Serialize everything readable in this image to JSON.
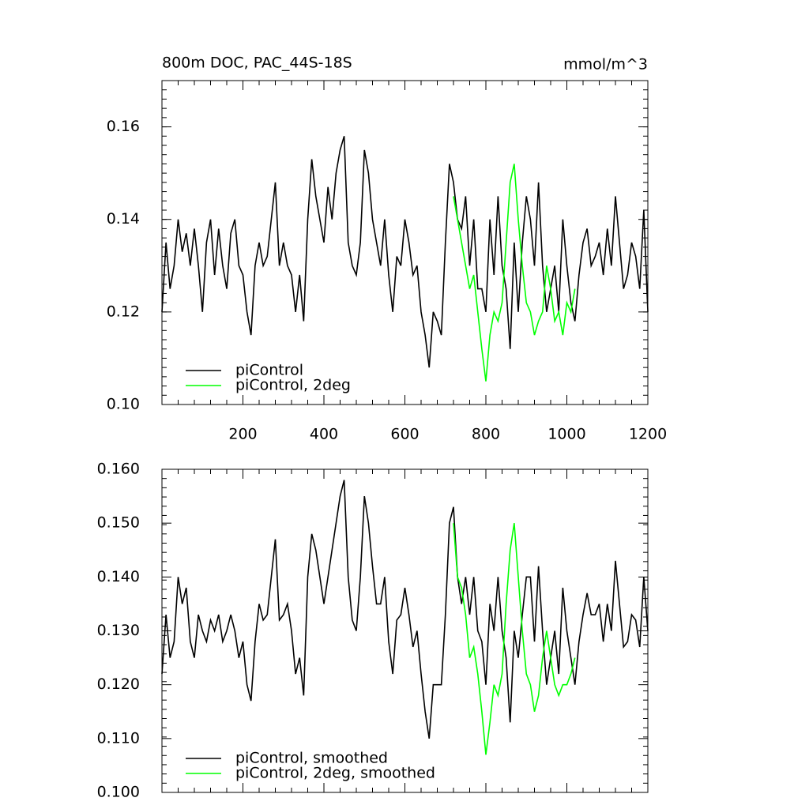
{
  "chart_data": [
    {
      "type": "line",
      "title": "800m DOC, PAC_44S-18S",
      "units": "mmol/m^3",
      "xlim": [
        0,
        1200
      ],
      "xticks": [
        200,
        400,
        600,
        800,
        1000,
        1200
      ],
      "ylim": [
        0.1,
        0.17
      ],
      "yticks": [
        {
          "value": 0.1,
          "label": "0.10"
        },
        {
          "value": 0.12,
          "label": "0.12"
        },
        {
          "value": 0.14,
          "label": "0.14"
        },
        {
          "value": 0.16,
          "label": "0.16"
        }
      ],
      "legend": "lower left",
      "series": [
        {
          "name": "piControl",
          "color": "#000000",
          "x": [
            0,
            10,
            20,
            30,
            40,
            50,
            60,
            70,
            80,
            90,
            100,
            110,
            120,
            130,
            140,
            150,
            160,
            170,
            180,
            190,
            200,
            210,
            220,
            230,
            240,
            250,
            260,
            270,
            280,
            290,
            300,
            310,
            320,
            330,
            340,
            350,
            360,
            370,
            380,
            390,
            400,
            410,
            420,
            430,
            440,
            450,
            460,
            470,
            480,
            490,
            500,
            510,
            520,
            530,
            540,
            550,
            560,
            570,
            580,
            590,
            600,
            610,
            620,
            630,
            640,
            650,
            660,
            670,
            680,
            690,
            700,
            710,
            720,
            730,
            740,
            750,
            760,
            770,
            780,
            790,
            800,
            810,
            820,
            830,
            840,
            850,
            860,
            870,
            880,
            890,
            900,
            910,
            920,
            930,
            940,
            950,
            960,
            970,
            980,
            990,
            1000,
            1010,
            1020,
            1030,
            1040,
            1050,
            1060,
            1070,
            1080,
            1090,
            1100,
            1110,
            1120,
            1130,
            1140,
            1150,
            1160,
            1170,
            1180,
            1190,
            1200
          ],
          "values": [
            0.12,
            0.135,
            0.125,
            0.13,
            0.14,
            0.133,
            0.137,
            0.13,
            0.138,
            0.13,
            0.12,
            0.135,
            0.14,
            0.128,
            0.138,
            0.13,
            0.125,
            0.137,
            0.14,
            0.13,
            0.128,
            0.12,
            0.115,
            0.13,
            0.135,
            0.13,
            0.132,
            0.14,
            0.148,
            0.13,
            0.135,
            0.13,
            0.128,
            0.12,
            0.128,
            0.118,
            0.14,
            0.153,
            0.145,
            0.14,
            0.135,
            0.147,
            0.14,
            0.15,
            0.155,
            0.158,
            0.135,
            0.13,
            0.128,
            0.135,
            0.155,
            0.15,
            0.14,
            0.135,
            0.13,
            0.14,
            0.128,
            0.12,
            0.132,
            0.13,
            0.14,
            0.135,
            0.128,
            0.13,
            0.12,
            0.115,
            0.108,
            0.12,
            0.118,
            0.115,
            0.135,
            0.152,
            0.148,
            0.14,
            0.138,
            0.145,
            0.13,
            0.14,
            0.125,
            0.125,
            0.12,
            0.14,
            0.128,
            0.145,
            0.13,
            0.125,
            0.112,
            0.135,
            0.12,
            0.135,
            0.145,
            0.14,
            0.13,
            0.148,
            0.13,
            0.12,
            0.125,
            0.13,
            0.12,
            0.14,
            0.13,
            0.122,
            0.118,
            0.128,
            0.135,
            0.138,
            0.13,
            0.132,
            0.135,
            0.128,
            0.138,
            0.13,
            0.145,
            0.135,
            0.125,
            0.128,
            0.135,
            0.132,
            0.125,
            0.142,
            0.12
          ]
        },
        {
          "name": "piControl, 2deg",
          "color": "#00ff00",
          "x": [
            720,
            730,
            740,
            750,
            760,
            770,
            780,
            790,
            800,
            810,
            820,
            830,
            840,
            850,
            860,
            870,
            880,
            890,
            900,
            910,
            920,
            930,
            940,
            950,
            960,
            970,
            980,
            990,
            1000,
            1010,
            1020
          ],
          "values": [
            0.145,
            0.14,
            0.135,
            0.13,
            0.125,
            0.128,
            0.12,
            0.112,
            0.105,
            0.115,
            0.12,
            0.118,
            0.122,
            0.135,
            0.148,
            0.152,
            0.14,
            0.13,
            0.122,
            0.12,
            0.115,
            0.118,
            0.12,
            0.13,
            0.125,
            0.118,
            0.12,
            0.115,
            0.122,
            0.12,
            0.125
          ]
        }
      ]
    },
    {
      "type": "line",
      "xlim": [
        0,
        1200
      ],
      "ylim": [
        0.1,
        0.16
      ],
      "yticks": [
        {
          "value": 0.1,
          "label": "0.100"
        },
        {
          "value": 0.11,
          "label": "0.110"
        },
        {
          "value": 0.12,
          "label": "0.120"
        },
        {
          "value": 0.13,
          "label": "0.130"
        },
        {
          "value": 0.14,
          "label": "0.140"
        },
        {
          "value": 0.15,
          "label": "0.150"
        },
        {
          "value": 0.16,
          "label": "0.160"
        }
      ],
      "legend": "lower left",
      "series": [
        {
          "name": "piControl, smoothed",
          "color": "#000000",
          "x": [
            0,
            10,
            20,
            30,
            40,
            50,
            60,
            70,
            80,
            90,
            100,
            110,
            120,
            130,
            140,
            150,
            160,
            170,
            180,
            190,
            200,
            210,
            220,
            230,
            240,
            250,
            260,
            270,
            280,
            290,
            300,
            310,
            320,
            330,
            340,
            350,
            360,
            370,
            380,
            390,
            400,
            410,
            420,
            430,
            440,
            450,
            460,
            470,
            480,
            490,
            500,
            510,
            520,
            530,
            540,
            550,
            560,
            570,
            580,
            590,
            600,
            610,
            620,
            630,
            640,
            650,
            660,
            670,
            680,
            690,
            700,
            710,
            720,
            730,
            740,
            750,
            760,
            770,
            780,
            790,
            800,
            810,
            820,
            830,
            840,
            850,
            860,
            870,
            880,
            890,
            900,
            910,
            920,
            930,
            940,
            950,
            960,
            970,
            980,
            990,
            1000,
            1010,
            1020,
            1030,
            1040,
            1050,
            1060,
            1070,
            1080,
            1090,
            1100,
            1110,
            1120,
            1130,
            1140,
            1150,
            1160,
            1170,
            1180,
            1190,
            1200
          ],
          "values": [
            0.122,
            0.133,
            0.125,
            0.128,
            0.14,
            0.135,
            0.138,
            0.128,
            0.125,
            0.133,
            0.13,
            0.128,
            0.132,
            0.13,
            0.133,
            0.128,
            0.13,
            0.133,
            0.13,
            0.125,
            0.128,
            0.12,
            0.117,
            0.128,
            0.135,
            0.132,
            0.133,
            0.14,
            0.147,
            0.132,
            0.133,
            0.135,
            0.13,
            0.122,
            0.125,
            0.118,
            0.14,
            0.148,
            0.145,
            0.14,
            0.135,
            0.14,
            0.145,
            0.15,
            0.155,
            0.158,
            0.14,
            0.132,
            0.13,
            0.14,
            0.155,
            0.15,
            0.142,
            0.135,
            0.135,
            0.14,
            0.128,
            0.122,
            0.132,
            0.133,
            0.138,
            0.133,
            0.127,
            0.13,
            0.122,
            0.115,
            0.11,
            0.12,
            0.12,
            0.12,
            0.133,
            0.15,
            0.153,
            0.14,
            0.135,
            0.14,
            0.133,
            0.14,
            0.13,
            0.128,
            0.12,
            0.135,
            0.13,
            0.14,
            0.13,
            0.125,
            0.113,
            0.13,
            0.125,
            0.133,
            0.14,
            0.14,
            0.128,
            0.142,
            0.13,
            0.12,
            0.125,
            0.13,
            0.122,
            0.138,
            0.13,
            0.125,
            0.12,
            0.128,
            0.133,
            0.137,
            0.133,
            0.133,
            0.135,
            0.128,
            0.135,
            0.13,
            0.143,
            0.135,
            0.127,
            0.128,
            0.133,
            0.132,
            0.127,
            0.14,
            0.13
          ]
        },
        {
          "name": "piControl, 2deg, smoothed",
          "color": "#00ff00",
          "x": [
            720,
            730,
            740,
            750,
            760,
            770,
            780,
            790,
            800,
            810,
            820,
            830,
            840,
            850,
            860,
            870,
            880,
            890,
            900,
            910,
            920,
            930,
            940,
            950,
            960,
            970,
            980,
            990,
            1000,
            1010,
            1020
          ],
          "values": [
            0.15,
            0.14,
            0.138,
            0.133,
            0.125,
            0.127,
            0.122,
            0.115,
            0.107,
            0.113,
            0.12,
            0.118,
            0.122,
            0.135,
            0.145,
            0.15,
            0.14,
            0.13,
            0.122,
            0.12,
            0.115,
            0.118,
            0.125,
            0.13,
            0.125,
            0.12,
            0.118,
            0.12,
            0.12,
            0.122,
            0.125
          ]
        }
      ]
    }
  ]
}
